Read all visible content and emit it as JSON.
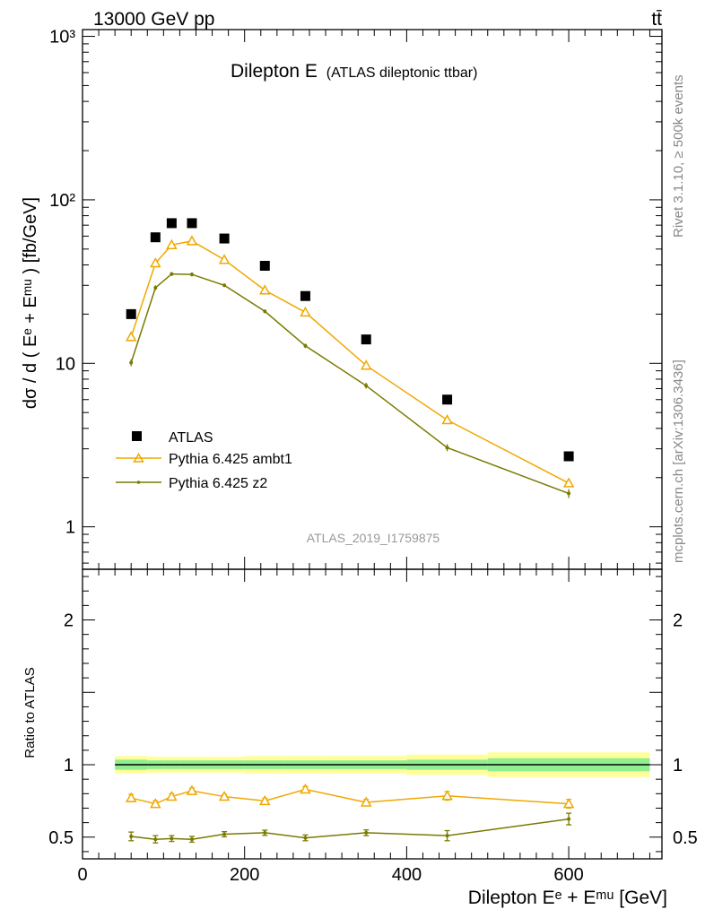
{
  "header": {
    "energy_label": "13000 GeV pp",
    "process_label": "tt̄"
  },
  "side_labels": {
    "rivet": "Rivet 3.1.10, ≥ 500k events",
    "source": "mcplots.cern.ch [arXiv:1306.3436]"
  },
  "colors": {
    "data": "#000000",
    "ambt1": "#f0a800",
    "z2": "#7a7a00",
    "band_inner": "#90ee90",
    "band_outer": "#ffff99"
  },
  "chart_data": [
    {
      "type": "scatter",
      "title_main": "Dilepton E",
      "title_sub": "(ATLAS dileptonic ttbar)",
      "ylabel": "dσ / d ( Eᵉ + Eᵐᵘ ) [fb/GeV]",
      "analysis_label": "ATLAS_2019_I1759875",
      "yscale": "log",
      "xlim": [
        0,
        715
      ],
      "ylim": [
        0.55,
        1100
      ],
      "y_ticks": [
        {
          "value": 1,
          "label": "1"
        },
        {
          "value": 10,
          "label": "10"
        },
        {
          "value": 100,
          "label": "10²"
        },
        {
          "value": 1000,
          "label": "10³"
        }
      ],
      "legend_position": "middle-left",
      "series": [
        {
          "name": "ATLAS",
          "marker": "square",
          "x": [
            60,
            90,
            110,
            135,
            175,
            225,
            275,
            350,
            450,
            600
          ],
          "y": [
            20,
            59,
            72,
            72,
            58,
            39.5,
            25.8,
            14,
            6.0,
            2.7
          ]
        },
        {
          "name": "Pythia 6.425 ambt1",
          "marker": "triangle",
          "x": [
            60,
            90,
            110,
            135,
            175,
            225,
            275,
            350,
            450,
            600
          ],
          "y": [
            14.5,
            41,
            53,
            56,
            43,
            28,
            20.5,
            9.7,
            4.5,
            1.85
          ]
        },
        {
          "name": "Pythia 6.425 z2",
          "marker": "dot",
          "x": [
            60,
            90,
            110,
            135,
            175,
            225,
            275,
            350,
            450,
            600
          ],
          "y": [
            10.1,
            29,
            35.2,
            35,
            30,
            20.8,
            12.8,
            7.3,
            3.05,
            1.6
          ],
          "yerr": [
            0.5,
            1.0,
            1.0,
            1.0,
            0.7,
            0.5,
            0.4,
            0.3,
            0.15,
            0.1
          ]
        }
      ]
    },
    {
      "type": "line",
      "ylabel": "Ratio to ATLAS",
      "xlabel": "Dilepton Eᵉ + Eᵐᵘ [GeV]",
      "xlim": [
        0,
        715
      ],
      "ylim": [
        0.35,
        2.35
      ],
      "x_ticks": [
        0,
        200,
        400,
        600
      ],
      "y_ticks": [
        0.5,
        1,
        2
      ],
      "uncertainty_band": {
        "edges": [
          40,
          80,
          100,
          120,
          150,
          200,
          250,
          300,
          400,
          500,
          700
        ],
        "inner": [
          0.035,
          0.03,
          0.03,
          0.03,
          0.03,
          0.03,
          0.03,
          0.03,
          0.035,
          0.045
        ],
        "outer": [
          0.06,
          0.055,
          0.055,
          0.055,
          0.055,
          0.06,
          0.06,
          0.06,
          0.07,
          0.085
        ]
      },
      "series": [
        {
          "name": "Pythia 6.425 ambt1",
          "x": [
            60,
            90,
            110,
            135,
            175,
            225,
            275,
            350,
            450,
            600
          ],
          "y": [
            0.77,
            0.73,
            0.78,
            0.82,
            0.78,
            0.75,
            0.83,
            0.74,
            0.785,
            0.73
          ],
          "yerr": [
            0.025,
            0.02,
            0.02,
            0.018,
            0.015,
            0.018,
            0.02,
            0.02,
            0.03,
            0.03
          ]
        },
        {
          "name": "Pythia 6.425 z2",
          "x": [
            60,
            90,
            110,
            135,
            175,
            225,
            275,
            350,
            450,
            600
          ],
          "y": [
            0.505,
            0.485,
            0.49,
            0.485,
            0.52,
            0.53,
            0.495,
            0.53,
            0.51,
            0.625
          ],
          "yerr": [
            0.03,
            0.025,
            0.02,
            0.02,
            0.018,
            0.018,
            0.02,
            0.02,
            0.035,
            0.04
          ]
        }
      ]
    }
  ]
}
